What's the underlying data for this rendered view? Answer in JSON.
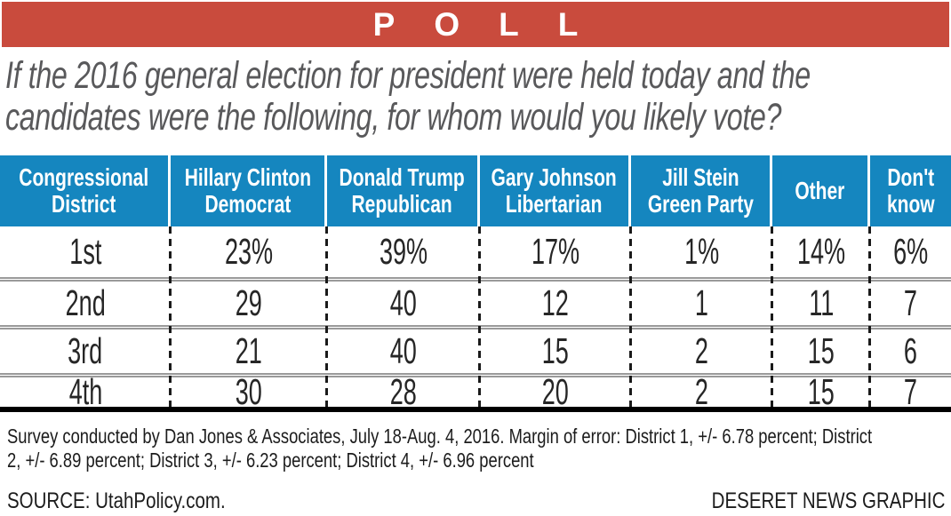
{
  "masthead": {
    "title": "POLL"
  },
  "question": {
    "text": "If the 2016 general election for president were held today and the\ncandidates were the following, for whom would you likely vote?"
  },
  "table": {
    "columns": [
      "Congressional\nDistrict",
      "Hillary Clinton\nDemocrat",
      "Donald Trump\nRepublican",
      "Gary Johnson\nLibertarian",
      "Jill Stein\nGreen Party",
      "Other",
      "Don't\nknow"
    ],
    "rows": [
      [
        "1st",
        "23%",
        "39%",
        "17%",
        "1%",
        "14%",
        "6%"
      ],
      [
        "2nd",
        "29",
        "40",
        "12",
        "1",
        "11",
        "7"
      ],
      [
        "3rd",
        "21",
        "40",
        "15",
        "2",
        "15",
        "6"
      ],
      [
        "4th",
        "30",
        "28",
        "20",
        "2",
        "15",
        "7"
      ]
    ]
  },
  "footnote": {
    "text": "Survey conducted by Dan Jones & Associates, July 18-Aug. 4, 2016. Margin of error: District 1, +/- 6.78 percent; District\n2, +/- 6.89 percent; District 3, +/- 6.23 percent; District 4, +/- 6.96 percent"
  },
  "source": {
    "text": "SOURCE: UtahPolicy.com."
  },
  "credit": {
    "text": "DESERET NEWS GRAPHIC"
  },
  "colors": {
    "masthead_red": "#c94b3d",
    "header_blue": "#1586bf",
    "question_gray": "#59595b",
    "separator_gray": "#9a9a9a",
    "text_dark": "#262626"
  },
  "chart_data": {
    "type": "table",
    "title": "POLL",
    "question": "If the 2016 general election for president were held today and the candidates were the following, for whom would you likely vote?",
    "columns": [
      "Congressional District",
      "Hillary Clinton Democrat",
      "Donald Trump Republican",
      "Gary Johnson Libertarian",
      "Jill Stein Green Party",
      "Other",
      "Don't know"
    ],
    "units": "percent",
    "rows": [
      {
        "district": "1st",
        "clinton": 23,
        "trump": 39,
        "johnson": 17,
        "stein": 1,
        "other": 14,
        "dont_know": 6
      },
      {
        "district": "2nd",
        "clinton": 29,
        "trump": 40,
        "johnson": 12,
        "stein": 1,
        "other": 11,
        "dont_know": 7
      },
      {
        "district": "3rd",
        "clinton": 21,
        "trump": 40,
        "johnson": 15,
        "stein": 2,
        "other": 15,
        "dont_know": 6
      },
      {
        "district": "4th",
        "clinton": 30,
        "trump": 28,
        "johnson": 20,
        "stein": 2,
        "other": 15,
        "dont_know": 7
      }
    ],
    "notes": "Survey conducted by Dan Jones & Associates, July 18-Aug. 4, 2016. Margin of error: District 1, +/- 6.78 percent; District 2, +/- 6.89 percent; District 3, +/- 6.23 percent; District 4, +/- 6.96 percent",
    "source": "UtahPolicy.com",
    "credit": "DESERET NEWS GRAPHIC"
  }
}
